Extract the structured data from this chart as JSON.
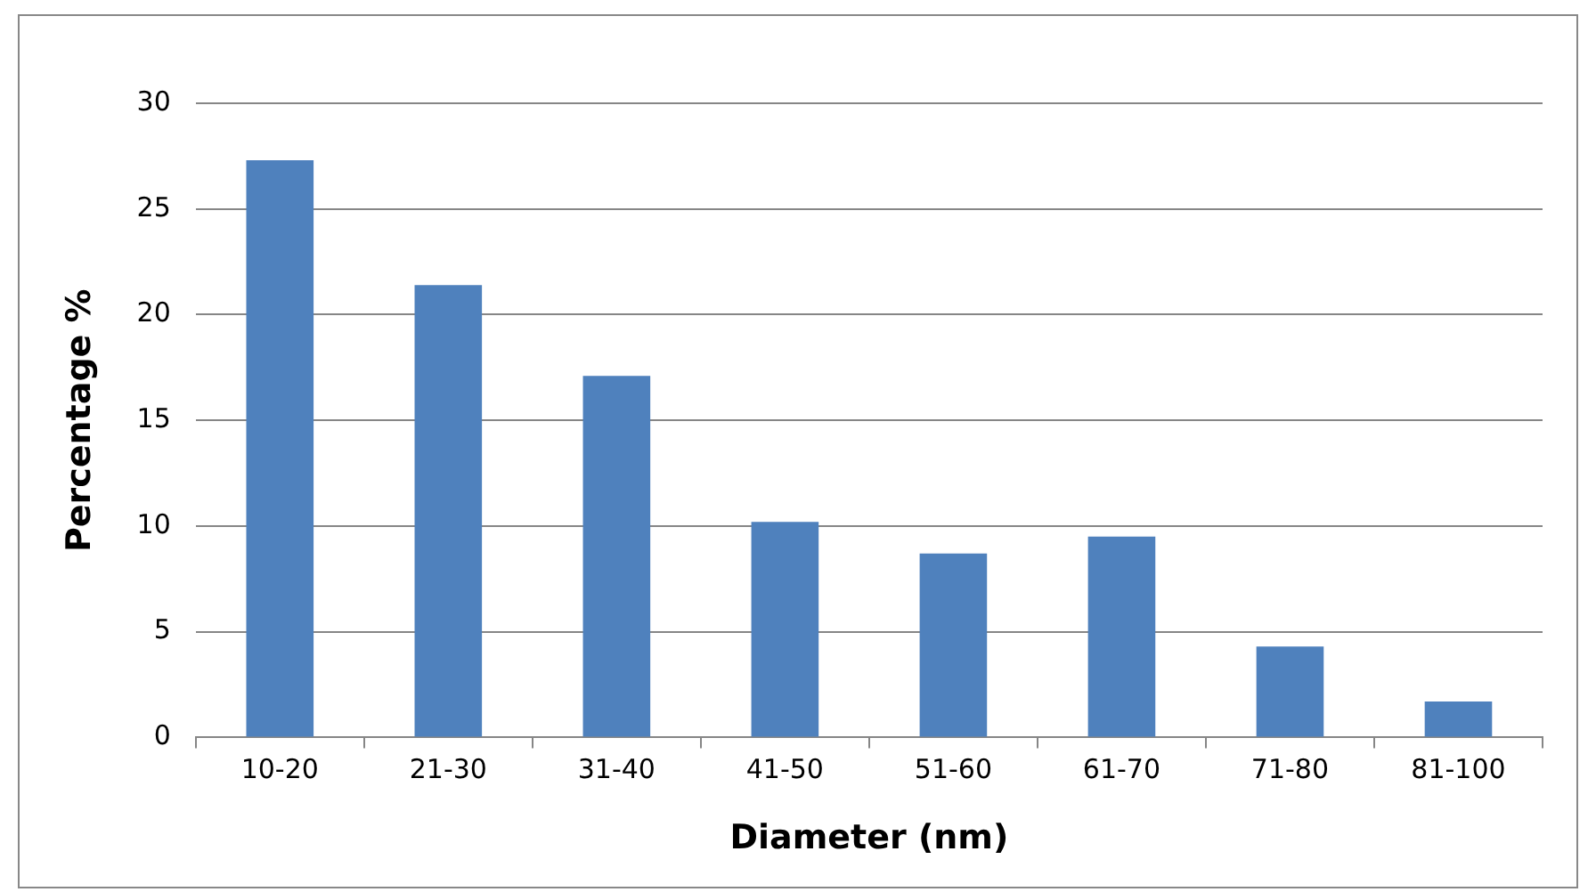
{
  "chart_data": {
    "type": "bar",
    "xlabel": "Diameter (nm)",
    "ylabel": "Percentage %",
    "categories": [
      "10-20",
      "21-30",
      "31-40",
      "41-50",
      "51-60",
      "61-70",
      "71-80",
      "81-100"
    ],
    "values": [
      27.3,
      21.4,
      17.1,
      10.2,
      8.7,
      9.5,
      4.3,
      1.7
    ],
    "color": "#4f81bd",
    "ylim": [
      0,
      30
    ],
    "yticks": [
      0,
      5,
      10,
      15,
      20,
      25,
      30
    ],
    "grid": "y",
    "legend": false
  }
}
